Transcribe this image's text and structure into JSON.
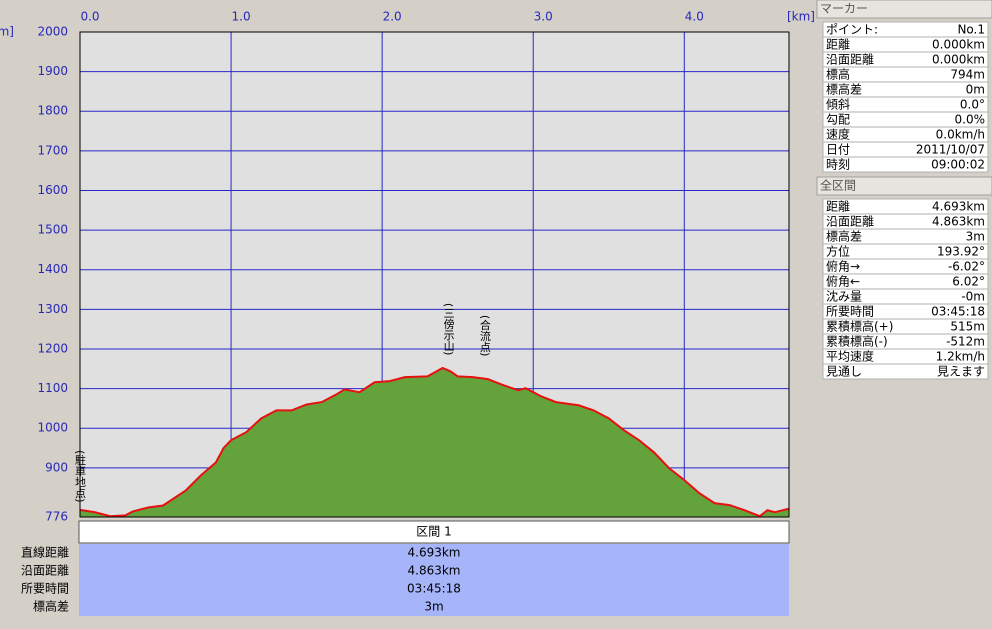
{
  "chart_data": {
    "type": "area",
    "x_unit": "[km]",
    "y_unit": "[m]",
    "x": [
      0,
      0.1,
      0.2,
      0.3,
      0.35,
      0.45,
      0.55,
      0.7,
      0.8,
      0.9,
      0.95,
      1.0,
      1.1,
      1.2,
      1.3,
      1.4,
      1.5,
      1.6,
      1.7,
      1.75,
      1.85,
      1.95,
      2.05,
      2.15,
      2.3,
      2.4,
      2.45,
      2.5,
      2.6,
      2.7,
      2.8,
      2.9,
      2.95,
      3.05,
      3.15,
      3.3,
      3.4,
      3.5,
      3.6,
      3.7,
      3.8,
      3.9,
      4.0,
      4.1,
      4.2,
      4.3,
      4.4,
      4.5,
      4.55,
      4.6,
      4.693
    ],
    "values": [
      794,
      788,
      778,
      780,
      790,
      800,
      805,
      843,
      881,
      914,
      950,
      970,
      990,
      1025,
      1045,
      1045,
      1060,
      1066,
      1086,
      1098,
      1091,
      1116,
      1119,
      1129,
      1131,
      1152,
      1144,
      1131,
      1129,
      1124,
      1109,
      1096,
      1101,
      1081,
      1066,
      1058,
      1045,
      1025,
      995,
      970,
      939,
      899,
      869,
      836,
      811,
      806,
      793,
      778,
      793,
      788,
      797
    ],
    "color": "#e81010",
    "fill_color": "#64a23c",
    "grid": true,
    "xlim": [
      0,
      4.693
    ],
    "xticks": [
      {
        "value": 0,
        "label": "0.0"
      },
      {
        "value": 1,
        "label": "1.0"
      },
      {
        "value": 2,
        "label": "2.0"
      },
      {
        "value": 3,
        "label": "3.0"
      },
      {
        "value": 4,
        "label": "4.0"
      }
    ],
    "ylim": [
      776,
      2000
    ],
    "yticks": [
      776,
      900,
      1000,
      1100,
      1200,
      1300,
      1400,
      1500,
      1600,
      1700,
      1800,
      1900,
      2000
    ],
    "annotations": [
      {
        "x": 0,
        "text": "(駐車地点)"
      },
      {
        "x": 2.44,
        "text": "(三傍示山)"
      },
      {
        "x": 2.68,
        "text": "(合流点)"
      }
    ]
  },
  "section_table": {
    "header": "区間 1",
    "rows": [
      [
        "直線距離",
        "4.693km"
      ],
      [
        "沿面距離",
        "4.863km"
      ],
      [
        "所要時間",
        "03:45:18"
      ],
      [
        "標高差",
        "3m"
      ]
    ]
  },
  "marker_panel": {
    "title": "マーカー",
    "rows": [
      [
        "ポイント:",
        "No.1"
      ],
      [
        "距離",
        "0.000km"
      ],
      [
        "沿面距離",
        "0.000km"
      ],
      [
        "標高",
        "794m"
      ],
      [
        "標高差",
        "0m"
      ],
      [
        "傾斜",
        "0.0°"
      ],
      [
        "勾配",
        "0.0%"
      ],
      [
        "速度",
        "0.0km/h"
      ],
      [
        "日付",
        "2011/10/07"
      ],
      [
        "時刻",
        "09:00:02"
      ]
    ]
  },
  "total_panel": {
    "title": "全区間",
    "rows": [
      [
        "距離",
        "4.693km"
      ],
      [
        "沿面距離",
        "4.863km"
      ],
      [
        "標高差",
        "3m"
      ],
      [
        "方位",
        "193.92°"
      ],
      [
        "俯角→",
        "-6.02°"
      ],
      [
        "俯角←",
        "6.02°"
      ],
      [
        "沈み量",
        "-0m"
      ],
      [
        "所要時間",
        "03:45:18"
      ],
      [
        "累積標高(+)",
        "515m"
      ],
      [
        "累積標高(-)",
        "-512m"
      ],
      [
        "平均速度",
        "1.2km/h"
      ],
      [
        "見通し",
        "見えます"
      ]
    ]
  }
}
